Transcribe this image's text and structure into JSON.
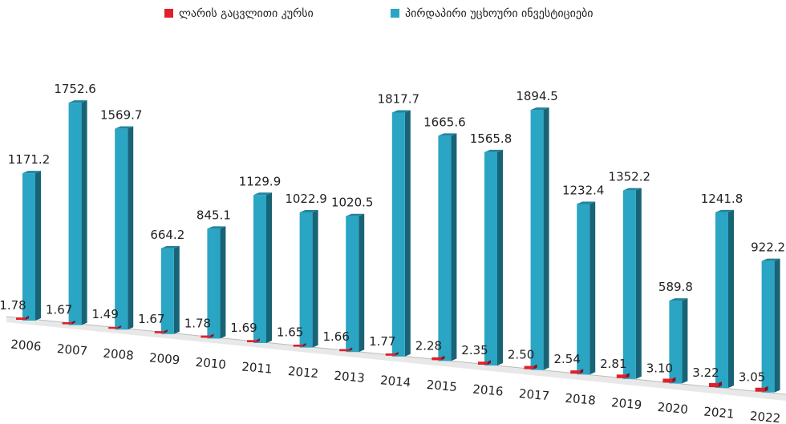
{
  "chart_data": {
    "type": "bar3d",
    "categories": [
      "2006",
      "2007",
      "2008",
      "2009",
      "2010",
      "2011",
      "2012",
      "2013",
      "2014",
      "2015",
      "2016",
      "2017",
      "2018",
      "2019",
      "2020",
      "2021",
      "2022"
    ],
    "series": [
      {
        "name": "ლარის გაცვლითი კურსი",
        "color": "#e0202a",
        "values": [
          1.78,
          1.67,
          1.49,
          1.67,
          1.78,
          1.69,
          1.65,
          1.66,
          1.77,
          2.28,
          2.35,
          2.5,
          2.54,
          2.81,
          3.1,
          3.22,
          3.05
        ],
        "value_labels": [
          "1.78",
          "1.67",
          "1.49",
          "1.67",
          "1.78",
          "1.69",
          "1.65",
          "1.66",
          "1.77",
          "2.28",
          "2.35",
          "2.50",
          "2.54",
          "2.81",
          "3.10",
          "3.22",
          "3.05"
        ]
      },
      {
        "name": "პირდაპირი უცხოური ინვესტიციები",
        "color": "#2aa5c4",
        "values": [
          1171.2,
          1752.6,
          1569.7,
          664.2,
          845.1,
          1129.9,
          1022.9,
          1020.5,
          1817.7,
          1665.6,
          1565.8,
          1894.5,
          1232.4,
          1352.2,
          589.8,
          1241.8,
          922.2
        ],
        "value_labels": [
          "1171.2",
          "1752.6",
          "1569.7",
          "664.2",
          "845.1",
          "1129.9",
          "1022.9",
          "1020.5",
          "1817.7",
          "1665.6",
          "1565.8",
          "1894.5",
          "1232.4",
          "1352.2",
          "589.8",
          "1241.8",
          "922.2"
        ]
      }
    ],
    "legend": "top"
  }
}
